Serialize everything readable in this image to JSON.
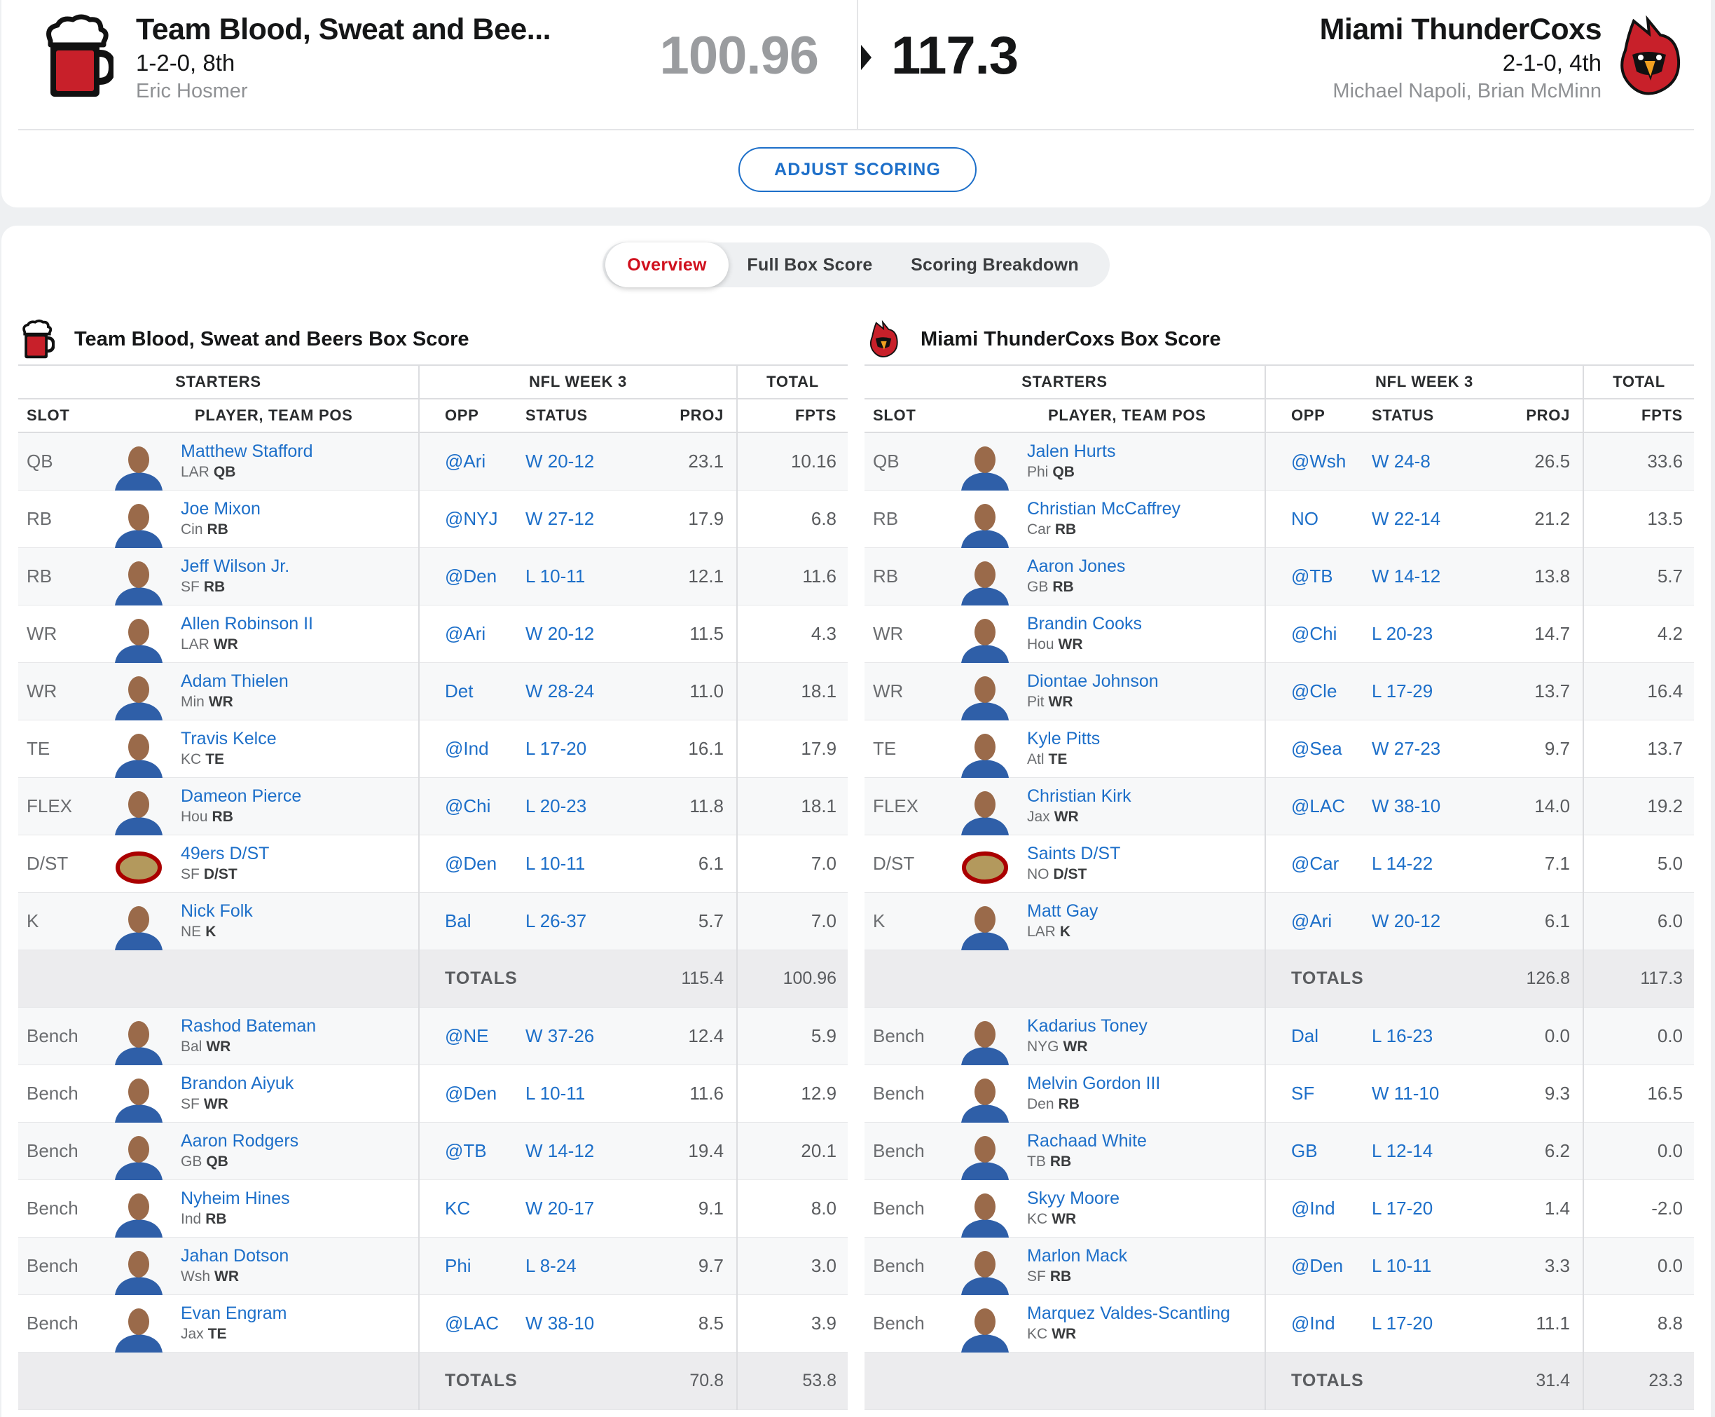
{
  "matchup": {
    "left": {
      "name": "Team Blood, Sweat and Bee...",
      "record": "1-2-0, 8th",
      "owners": "Eric Hosmer",
      "score": "100.96"
    },
    "right": {
      "name": "Miami ThunderCoxs",
      "record": "2-1-0, 4th",
      "owners": "Michael Napoli, Brian McMinn",
      "score": "117.3"
    },
    "adjust_label": "ADJUST SCORING"
  },
  "tabs": [
    {
      "label": "Overview",
      "active": true
    },
    {
      "label": "Full Box Score",
      "active": false
    },
    {
      "label": "Scoring Breakdown",
      "active": false
    }
  ],
  "columns": {
    "starters": "STARTERS",
    "week": "NFL WEEK 3",
    "total": "TOTAL",
    "slot": "SLOT",
    "player": "PLAYER, TEAM POS",
    "opp": "OPP",
    "status": "STATUS",
    "proj": "PROJ",
    "fpts": "FPTS",
    "totals": "TOTALS"
  },
  "colors": {
    "accent_blue": "#1d6fc9",
    "accent_red": "#d0101d"
  },
  "boxes": [
    {
      "title": "Team Blood, Sweat and Beers Box Score",
      "logo": "beer-mug-logo",
      "starters": [
        {
          "slot": "QB",
          "name": "Matthew Stafford",
          "team": "LAR",
          "pos": "QB",
          "opp": "@Ari",
          "status": "W 20-12",
          "proj": "23.1",
          "fpts": "10.16"
        },
        {
          "slot": "RB",
          "name": "Joe Mixon",
          "team": "Cin",
          "pos": "RB",
          "opp": "@NYJ",
          "status": "W 27-12",
          "proj": "17.9",
          "fpts": "6.8"
        },
        {
          "slot": "RB",
          "name": "Jeff Wilson Jr.",
          "team": "SF",
          "pos": "RB",
          "opp": "@Den",
          "status": "L 10-11",
          "proj": "12.1",
          "fpts": "11.6"
        },
        {
          "slot": "WR",
          "name": "Allen Robinson II",
          "team": "LAR",
          "pos": "WR",
          "opp": "@Ari",
          "status": "W 20-12",
          "proj": "11.5",
          "fpts": "4.3"
        },
        {
          "slot": "WR",
          "name": "Adam Thielen",
          "team": "Min",
          "pos": "WR",
          "opp": "Det",
          "status": "W 28-24",
          "proj": "11.0",
          "fpts": "18.1"
        },
        {
          "slot": "TE",
          "name": "Travis Kelce",
          "team": "KC",
          "pos": "TE",
          "opp": "@Ind",
          "status": "L 17-20",
          "proj": "16.1",
          "fpts": "17.9"
        },
        {
          "slot": "FLEX",
          "name": "Dameon Pierce",
          "team": "Hou",
          "pos": "RB",
          "opp": "@Chi",
          "status": "L 20-23",
          "proj": "11.8",
          "fpts": "18.1"
        },
        {
          "slot": "D/ST",
          "name": "49ers D/ST",
          "team": "SF",
          "pos": "D/ST",
          "opp": "@Den",
          "status": "L 10-11",
          "proj": "6.1",
          "fpts": "7.0"
        },
        {
          "slot": "K",
          "name": "Nick Folk",
          "team": "NE",
          "pos": "K",
          "opp": "Bal",
          "status": "L 26-37",
          "proj": "5.7",
          "fpts": "7.0"
        }
      ],
      "starter_totals": {
        "proj": "115.4",
        "fpts": "100.96"
      },
      "bench": [
        {
          "slot": "Bench",
          "name": "Rashod Bateman",
          "team": "Bal",
          "pos": "WR",
          "opp": "@NE",
          "status": "W 37-26",
          "proj": "12.4",
          "fpts": "5.9"
        },
        {
          "slot": "Bench",
          "name": "Brandon Aiyuk",
          "team": "SF",
          "pos": "WR",
          "opp": "@Den",
          "status": "L 10-11",
          "proj": "11.6",
          "fpts": "12.9"
        },
        {
          "slot": "Bench",
          "name": "Aaron Rodgers",
          "team": "GB",
          "pos": "QB",
          "opp": "@TB",
          "status": "W 14-12",
          "proj": "19.4",
          "fpts": "20.1"
        },
        {
          "slot": "Bench",
          "name": "Nyheim Hines",
          "team": "Ind",
          "pos": "RB",
          "opp": "KC",
          "status": "W 20-17",
          "proj": "9.1",
          "fpts": "8.0"
        },
        {
          "slot": "Bench",
          "name": "Jahan Dotson",
          "team": "Wsh",
          "pos": "WR",
          "opp": "Phi",
          "status": "L 8-24",
          "proj": "9.7",
          "fpts": "3.0"
        },
        {
          "slot": "Bench",
          "name": "Evan Engram",
          "team": "Jax",
          "pos": "TE",
          "opp": "@LAC",
          "status": "W 38-10",
          "proj": "8.5",
          "fpts": "3.9"
        }
      ],
      "bench_totals": {
        "proj": "70.8",
        "fpts": "53.8"
      }
    },
    {
      "title": "Miami ThunderCoxs Box Score",
      "logo": "cardinal-logo",
      "starters": [
        {
          "slot": "QB",
          "name": "Jalen Hurts",
          "team": "Phi",
          "pos": "QB",
          "opp": "@Wsh",
          "status": "W 24-8",
          "proj": "26.5",
          "fpts": "33.6"
        },
        {
          "slot": "RB",
          "name": "Christian McCaffrey",
          "team": "Car",
          "pos": "RB",
          "opp": "NO",
          "status": "W 22-14",
          "proj": "21.2",
          "fpts": "13.5"
        },
        {
          "slot": "RB",
          "name": "Aaron Jones",
          "team": "GB",
          "pos": "RB",
          "opp": "@TB",
          "status": "W 14-12",
          "proj": "13.8",
          "fpts": "5.7"
        },
        {
          "slot": "WR",
          "name": "Brandin Cooks",
          "team": "Hou",
          "pos": "WR",
          "opp": "@Chi",
          "status": "L 20-23",
          "proj": "14.7",
          "fpts": "4.2"
        },
        {
          "slot": "WR",
          "name": "Diontae Johnson",
          "team": "Pit",
          "pos": "WR",
          "opp": "@Cle",
          "status": "L 17-29",
          "proj": "13.7",
          "fpts": "16.4"
        },
        {
          "slot": "TE",
          "name": "Kyle Pitts",
          "team": "Atl",
          "pos": "TE",
          "opp": "@Sea",
          "status": "W 27-23",
          "proj": "9.7",
          "fpts": "13.7"
        },
        {
          "slot": "FLEX",
          "name": "Christian Kirk",
          "team": "Jax",
          "pos": "WR",
          "opp": "@LAC",
          "status": "W 38-10",
          "proj": "14.0",
          "fpts": "19.2"
        },
        {
          "slot": "D/ST",
          "name": "Saints D/ST",
          "team": "NO",
          "pos": "D/ST",
          "opp": "@Car",
          "status": "L 14-22",
          "proj": "7.1",
          "fpts": "5.0"
        },
        {
          "slot": "K",
          "name": "Matt Gay",
          "team": "LAR",
          "pos": "K",
          "opp": "@Ari",
          "status": "W 20-12",
          "proj": "6.1",
          "fpts": "6.0"
        }
      ],
      "starter_totals": {
        "proj": "126.8",
        "fpts": "117.3"
      },
      "bench": [
        {
          "slot": "Bench",
          "name": "Kadarius Toney",
          "team": "NYG",
          "pos": "WR",
          "opp": "Dal",
          "status": "L 16-23",
          "proj": "0.0",
          "fpts": "0.0"
        },
        {
          "slot": "Bench",
          "name": "Melvin Gordon III",
          "team": "Den",
          "pos": "RB",
          "opp": "SF",
          "status": "W 11-10",
          "proj": "9.3",
          "fpts": "16.5"
        },
        {
          "slot": "Bench",
          "name": "Rachaad White",
          "team": "TB",
          "pos": "RB",
          "opp": "GB",
          "status": "L 12-14",
          "proj": "6.2",
          "fpts": "0.0"
        },
        {
          "slot": "Bench",
          "name": "Skyy Moore",
          "team": "KC",
          "pos": "WR",
          "opp": "@Ind",
          "status": "L 17-20",
          "proj": "1.4",
          "fpts": "-2.0"
        },
        {
          "slot": "Bench",
          "name": "Marlon Mack",
          "team": "SF",
          "pos": "RB",
          "opp": "@Den",
          "status": "L 10-11",
          "proj": "3.3",
          "fpts": "0.0"
        },
        {
          "slot": "Bench",
          "name": "Marquez Valdes-Scantling",
          "team": "KC",
          "pos": "WR",
          "opp": "@Ind",
          "status": "L 17-20",
          "proj": "11.1",
          "fpts": "8.8"
        }
      ],
      "bench_totals": {
        "proj": "31.4",
        "fpts": "23.3"
      }
    }
  ]
}
